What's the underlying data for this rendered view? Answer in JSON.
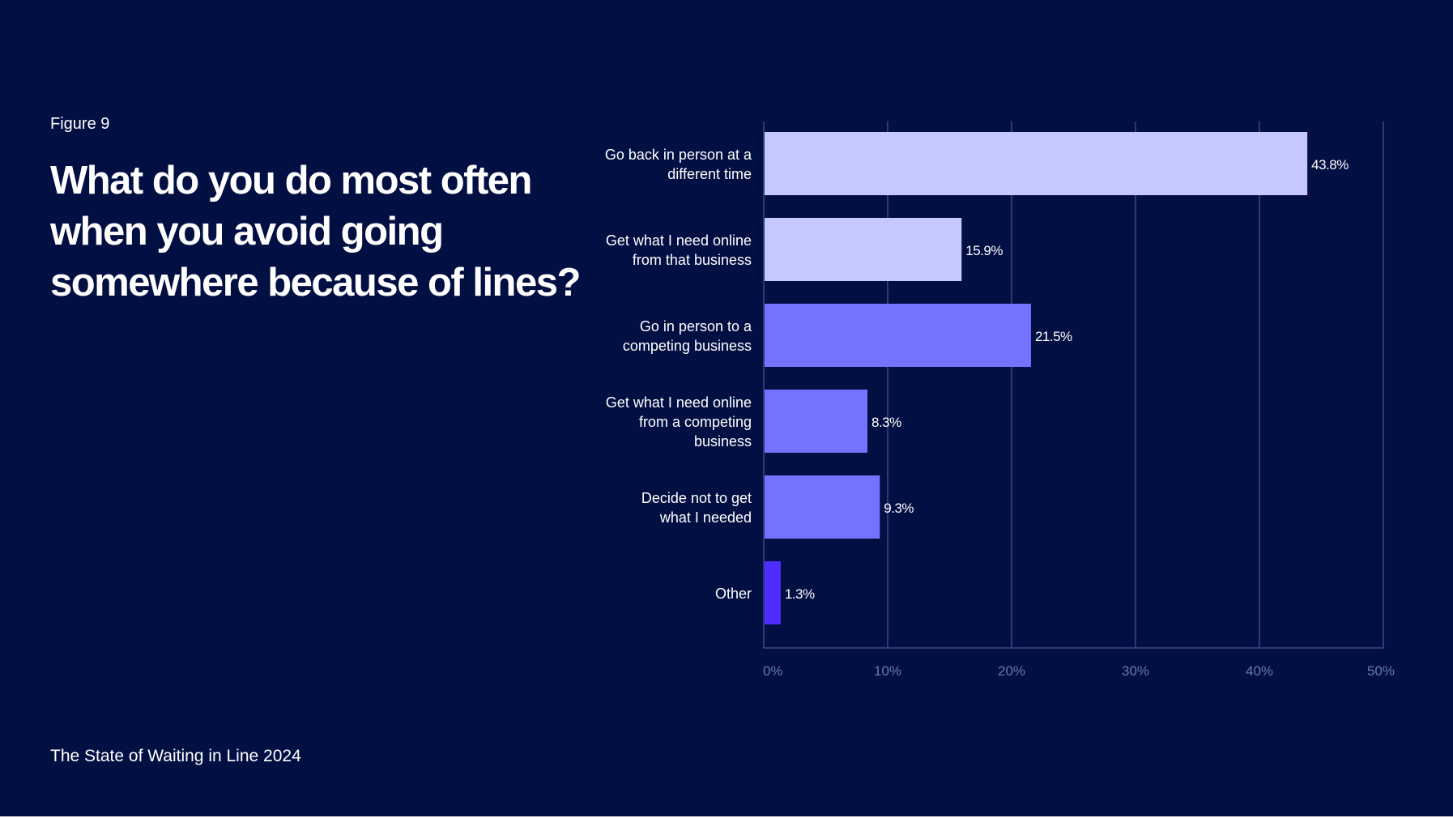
{
  "figure_label": "Figure 9",
  "title": "What do you do most often when you avoid going somewhere because of lines?",
  "footer": "The State of Waiting in Line 2024",
  "colors": {
    "background": "#020f42",
    "text": "#ffffff",
    "grid": "#3b4a8a",
    "tick": "#6b78b0"
  },
  "chart_data": {
    "type": "bar",
    "orientation": "horizontal",
    "title": "What do you do most often when you avoid going somewhere because of lines?",
    "xlabel": "",
    "ylabel": "",
    "xlim": [
      0,
      50
    ],
    "grid": true,
    "ticks": [
      "0%",
      "10%",
      "20%",
      "30%",
      "40%",
      "50%"
    ],
    "categories": [
      [
        "Go back in person at a",
        "different time"
      ],
      [
        "Get what I need online",
        "from that business"
      ],
      [
        "Go in person to a",
        "competing business"
      ],
      [
        "Get what I need online",
        "from a competing",
        "business"
      ],
      [
        "Decide not to get",
        "what I needed"
      ],
      [
        "Other"
      ]
    ],
    "values": [
      43.8,
      15.9,
      21.5,
      8.3,
      9.3,
      1.3
    ],
    "value_labels": [
      "43.8%",
      "15.9%",
      "21.5%",
      "8.3%",
      "9.3%",
      "1.3%"
    ],
    "bar_colors": [
      "#c5c8ff",
      "#c5c8ff",
      "#7472ff",
      "#7472ff",
      "#7472ff",
      "#4d2dff"
    ]
  }
}
